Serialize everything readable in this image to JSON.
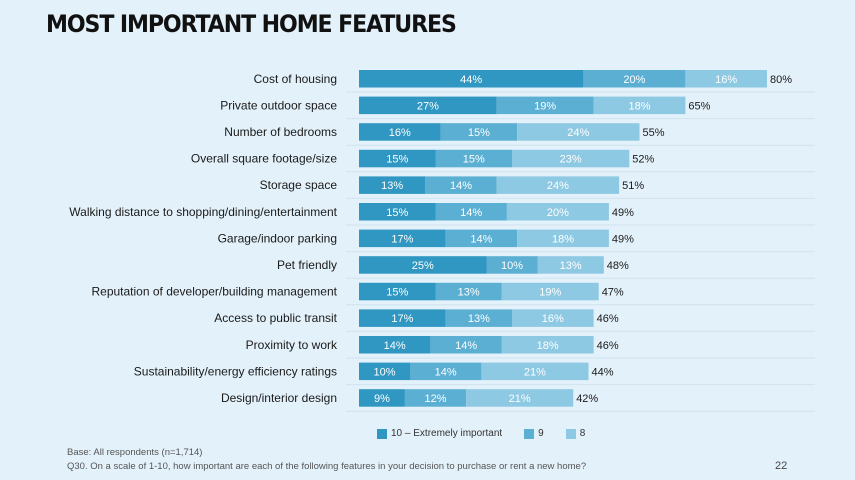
{
  "slide": {
    "title": "MOST IMPORTANT HOME FEATURES",
    "base_note": "Base: All respondents (n=1,714)",
    "question_note": "Q30. On a scale of 1-10, how important are each of the following features in your decision to purchase or rent a new home?",
    "page_number": "22"
  },
  "legend": {
    "items": [
      {
        "label": "10 – Extremely important",
        "color": "#2f97c1"
      },
      {
        "label": "9",
        "color": "#5bafd3"
      },
      {
        "label": "8",
        "color": "#8ec9e3"
      }
    ]
  },
  "chart_data": {
    "type": "bar",
    "orientation": "horizontal",
    "stacked": true,
    "categories": [
      "Cost of housing",
      "Private outdoor space",
      "Number of bedrooms",
      "Overall square footage/size",
      "Storage space",
      "Walking distance to shopping/dining/entertainment",
      "Garage/indoor parking",
      "Pet friendly",
      "Reputation of developer/building management",
      "Access to public transit",
      "Proximity to work",
      "Sustainability/energy efficiency ratings",
      "Design/interior design"
    ],
    "series": [
      {
        "name": "10 – Extremely important",
        "color": "#2f97c1",
        "values": [
          44,
          27,
          16,
          15,
          13,
          15,
          17,
          25,
          15,
          17,
          14,
          10,
          9
        ]
      },
      {
        "name": "9",
        "color": "#5bafd3",
        "values": [
          20,
          19,
          15,
          15,
          14,
          14,
          14,
          10,
          13,
          13,
          14,
          14,
          12
        ]
      },
      {
        "name": "8",
        "color": "#8ec9e3",
        "values": [
          16,
          18,
          24,
          23,
          24,
          20,
          18,
          13,
          19,
          16,
          18,
          21,
          21
        ]
      }
    ],
    "totals": [
      80,
      65,
      55,
      52,
      51,
      49,
      49,
      48,
      47,
      46,
      46,
      44,
      42
    ],
    "value_suffix": "%",
    "legend_position": "bottom",
    "grid": false
  }
}
